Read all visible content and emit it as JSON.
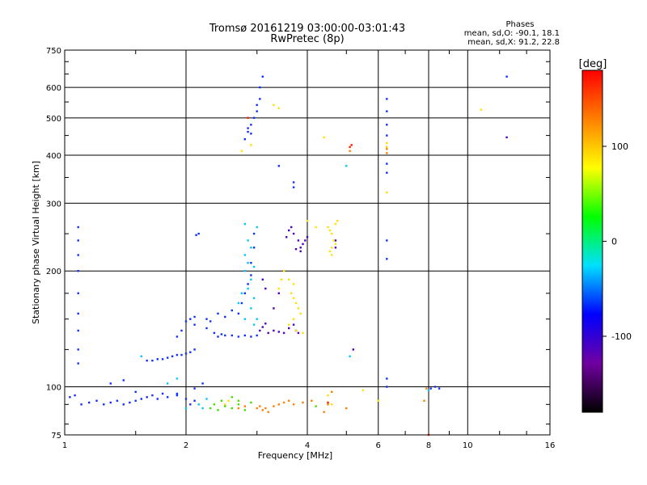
{
  "chart_data": {
    "type": "scatter",
    "title": "Tromsø 20161219 03:00:00-03:01:43",
    "subtitle": "RwPretec (8p)",
    "phase_box": {
      "heading": "Phases",
      "line1": "mean, sd,O: -90.1, 18.1",
      "line2": "mean, sd,X:  91.2, 22.8"
    },
    "xlabel": "Frequency [MHz]",
    "ylabel": "Stationary phase Virtual Height [km]",
    "xscale": "log",
    "yscale": "log",
    "xlim": [
      1,
      16
    ],
    "ylim": [
      75,
      750
    ],
    "xticks": [
      1,
      2,
      4,
      6,
      8,
      10,
      16
    ],
    "yticks": [
      75,
      100,
      200,
      300,
      400,
      500,
      600,
      750
    ],
    "grid": true,
    "colorbar": {
      "label": "[deg]",
      "range": [
        -180,
        180
      ],
      "ticks": [
        100,
        0,
        -100
      ],
      "colors": [
        "#000000",
        "#7000a0",
        "#0000ff",
        "#00e0ff",
        "#00ff00",
        "#ffff00",
        "#ff8000",
        "#ff0000"
      ]
    },
    "series": [
      {
        "color_class": "blue",
        "color": "#1030ff",
        "points": [
          [
            1.03,
            94
          ],
          [
            1.06,
            95
          ],
          [
            1.1,
            90
          ],
          [
            1.15,
            91
          ],
          [
            1.2,
            92
          ],
          [
            1.25,
            90
          ],
          [
            1.3,
            91
          ],
          [
            1.35,
            92
          ],
          [
            1.4,
            90
          ],
          [
            1.45,
            91
          ],
          [
            1.5,
            92
          ],
          [
            1.55,
            93
          ],
          [
            1.6,
            94
          ],
          [
            1.65,
            95
          ],
          [
            1.7,
            93
          ],
          [
            1.75,
            96
          ],
          [
            1.8,
            94
          ],
          [
            1.9,
            95
          ],
          [
            2.0,
            93
          ],
          [
            2.05,
            90
          ],
          [
            2.1,
            92
          ],
          [
            1.08,
            260
          ],
          [
            1.08,
            240
          ],
          [
            1.08,
            220
          ],
          [
            1.08,
            200
          ],
          [
            1.08,
            175
          ],
          [
            1.08,
            155
          ],
          [
            1.08,
            140
          ],
          [
            1.08,
            125
          ],
          [
            1.08,
            115
          ],
          [
            1.6,
            117
          ],
          [
            1.65,
            117
          ],
          [
            1.7,
            118
          ],
          [
            1.75,
            118
          ],
          [
            1.8,
            119
          ],
          [
            1.85,
            120
          ],
          [
            1.9,
            121
          ],
          [
            1.95,
            121
          ],
          [
            2.0,
            122
          ],
          [
            2.05,
            123
          ],
          [
            2.1,
            125
          ],
          [
            2.0,
            148
          ],
          [
            2.05,
            150
          ],
          [
            2.1,
            152
          ],
          [
            1.9,
            135
          ],
          [
            1.95,
            140
          ],
          [
            2.1,
            145
          ],
          [
            2.12,
            248
          ],
          [
            2.15,
            250
          ],
          [
            2.25,
            150
          ],
          [
            2.3,
            148
          ],
          [
            2.4,
            155
          ],
          [
            2.5,
            152
          ],
          [
            2.6,
            158
          ],
          [
            2.7,
            155
          ],
          [
            2.75,
            165
          ],
          [
            2.8,
            175
          ],
          [
            2.85,
            185
          ],
          [
            2.9,
            195
          ],
          [
            2.9,
            210
          ],
          [
            2.95,
            230
          ],
          [
            2.95,
            250
          ],
          [
            2.25,
            142
          ],
          [
            2.35,
            138
          ],
          [
            2.4,
            135
          ],
          [
            2.45,
            137
          ],
          [
            2.5,
            136
          ],
          [
            2.6,
            136
          ],
          [
            2.7,
            135
          ],
          [
            2.8,
            136
          ],
          [
            2.9,
            135
          ],
          [
            3.0,
            136
          ],
          [
            2.8,
            440
          ],
          [
            2.85,
            460
          ],
          [
            2.9,
            480
          ],
          [
            2.95,
            500
          ],
          [
            3.0,
            520
          ],
          [
            3.0,
            540
          ],
          [
            3.05,
            560
          ],
          [
            3.05,
            600
          ],
          [
            3.1,
            640
          ],
          [
            2.85,
            470
          ],
          [
            2.9,
            455
          ],
          [
            3.7,
            340
          ],
          [
            3.7,
            330
          ],
          [
            6.3,
            560
          ],
          [
            6.3,
            520
          ],
          [
            6.3,
            480
          ],
          [
            6.3,
            450
          ],
          [
            6.3,
            420
          ],
          [
            6.3,
            380
          ],
          [
            6.3,
            360
          ],
          [
            6.3,
            240
          ],
          [
            6.3,
            215
          ],
          [
            6.3,
            105
          ],
          [
            6.3,
            100
          ],
          [
            1.3,
            102
          ],
          [
            1.4,
            104
          ],
          [
            1.5,
            97
          ],
          [
            1.9,
            96
          ],
          [
            2.1,
            99
          ],
          [
            2.2,
            102
          ],
          [
            3.4,
            375
          ],
          [
            8.1,
            99
          ],
          [
            8.3,
            100
          ],
          [
            8.5,
            99
          ],
          [
            12.5,
            640
          ]
        ]
      },
      {
        "color_class": "cyan",
        "color": "#00c8ff",
        "points": [
          [
            2.8,
            200
          ],
          [
            2.85,
            210
          ],
          [
            2.8,
            220
          ],
          [
            2.9,
            190
          ],
          [
            2.85,
            180
          ],
          [
            2.75,
            175
          ],
          [
            2.9,
            160
          ],
          [
            2.95,
            170
          ],
          [
            2.7,
            165
          ],
          [
            2.8,
            150
          ],
          [
            2.95,
            145
          ],
          [
            3.0,
            150
          ],
          [
            2.95,
            205
          ],
          [
            2.9,
            230
          ],
          [
            2.85,
            240
          ],
          [
            3.0,
            260
          ],
          [
            2.8,
            265
          ],
          [
            5.0,
            375
          ],
          [
            2.2,
            88
          ],
          [
            2.25,
            93
          ],
          [
            2.15,
            90
          ],
          [
            1.9,
            105
          ],
          [
            1.8,
            102
          ],
          [
            2.0,
            88
          ],
          [
            5.1,
            120
          ],
          [
            1.55,
            120
          ],
          [
            8.0,
            98
          ]
        ]
      },
      {
        "color_class": "purple",
        "color": "#5000c0",
        "points": [
          [
            3.2,
            138
          ],
          [
            3.3,
            140
          ],
          [
            3.4,
            139
          ],
          [
            3.5,
            138
          ],
          [
            3.6,
            142
          ],
          [
            3.7,
            145
          ],
          [
            3.75,
            140
          ],
          [
            3.8,
            138
          ],
          [
            3.3,
            160
          ],
          [
            3.4,
            175
          ],
          [
            3.55,
            245
          ],
          [
            3.6,
            255
          ],
          [
            3.65,
            260
          ],
          [
            3.7,
            250
          ],
          [
            3.8,
            240
          ],
          [
            3.85,
            230
          ],
          [
            3.9,
            235
          ],
          [
            3.95,
            240
          ],
          [
            4.0,
            245
          ],
          [
            3.85,
            225
          ],
          [
            3.75,
            228
          ],
          [
            3.15,
            180
          ],
          [
            3.1,
            190
          ],
          [
            4.7,
            240
          ],
          [
            4.7,
            230
          ],
          [
            5.2,
            125
          ],
          [
            12.5,
            445
          ],
          [
            3.05,
            140
          ],
          [
            3.1,
            143
          ],
          [
            3.15,
            146
          ]
        ]
      },
      {
        "color_class": "yellow",
        "color": "#ffe000",
        "points": [
          [
            4.5,
            260
          ],
          [
            4.55,
            255
          ],
          [
            4.6,
            250
          ],
          [
            4.65,
            240
          ],
          [
            4.7,
            235
          ],
          [
            4.6,
            230
          ],
          [
            4.55,
            225
          ],
          [
            4.6,
            220
          ],
          [
            4.7,
            265
          ],
          [
            4.75,
            270
          ],
          [
            3.6,
            190
          ],
          [
            3.7,
            185
          ],
          [
            3.65,
            175
          ],
          [
            3.7,
            170
          ],
          [
            3.75,
            165
          ],
          [
            3.8,
            160
          ],
          [
            3.85,
            155
          ],
          [
            3.7,
            150
          ],
          [
            3.6,
            145
          ],
          [
            3.75,
            140
          ],
          [
            3.9,
            138
          ],
          [
            3.4,
            180
          ],
          [
            3.45,
            190
          ],
          [
            3.5,
            200
          ],
          [
            4.0,
            270
          ],
          [
            4.2,
            260
          ],
          [
            4.4,
            445
          ],
          [
            3.4,
            530
          ],
          [
            6.3,
            430
          ],
          [
            6.3,
            420
          ],
          [
            6.3,
            320
          ],
          [
            3.3,
            540
          ],
          [
            10.8,
            525
          ],
          [
            2.75,
            410
          ],
          [
            2.9,
            425
          ],
          [
            2.5,
            90
          ],
          [
            2.55,
            92
          ],
          [
            4.5,
            95
          ],
          [
            4.6,
            90
          ],
          [
            5.5,
            98
          ],
          [
            6.0,
            92
          ]
        ]
      },
      {
        "color_class": "orange",
        "color": "#ff8000",
        "points": [
          [
            3.0,
            88
          ],
          [
            3.05,
            89
          ],
          [
            3.1,
            87
          ],
          [
            3.15,
            88
          ],
          [
            3.2,
            86
          ],
          [
            3.3,
            89
          ],
          [
            3.4,
            90
          ],
          [
            3.5,
            91
          ],
          [
            3.6,
            92
          ],
          [
            3.7,
            90
          ],
          [
            4.1,
            92
          ],
          [
            4.4,
            86
          ],
          [
            4.5,
            90
          ],
          [
            4.6,
            97
          ],
          [
            5.0,
            88
          ],
          [
            5.1,
            410
          ],
          [
            6.3,
            415
          ],
          [
            6.3,
            405
          ],
          [
            7.8,
            92
          ],
          [
            7.9,
            99
          ],
          [
            2.7,
            88
          ],
          [
            2.8,
            89
          ],
          [
            3.9,
            91
          ]
        ]
      },
      {
        "color_class": "green",
        "color": "#40e000",
        "points": [
          [
            2.3,
            88
          ],
          [
            2.35,
            90
          ],
          [
            2.4,
            87
          ],
          [
            2.45,
            92
          ],
          [
            2.5,
            89
          ],
          [
            2.6,
            88
          ],
          [
            2.7,
            90
          ],
          [
            2.8,
            87
          ],
          [
            2.9,
            91
          ],
          [
            2.6,
            94
          ],
          [
            2.7,
            92
          ],
          [
            4.2,
            89
          ]
        ]
      },
      {
        "color_class": "red",
        "color": "#ff2000",
        "points": [
          [
            5.1,
            420
          ],
          [
            5.15,
            425
          ],
          [
            8.0,
            75
          ],
          [
            2.85,
            500
          ],
          [
            4.5,
            91
          ]
        ]
      }
    ]
  }
}
